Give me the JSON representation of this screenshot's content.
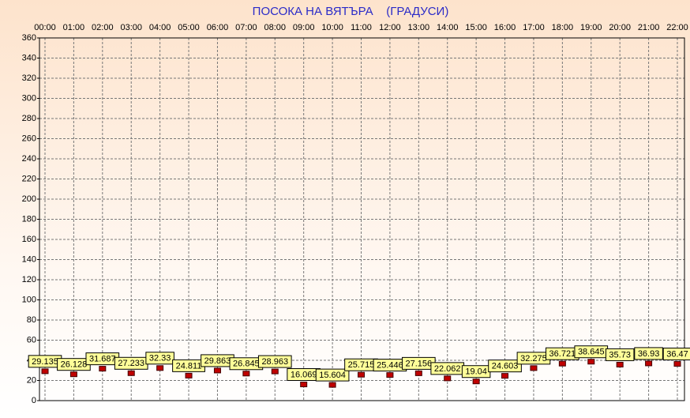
{
  "chart_data": {
    "type": "point",
    "title": "ПОСОКА НА ВЯТЪРА    (ГРАДУСИ)",
    "categories": [
      "00:00",
      "01:00",
      "02:00",
      "03:00",
      "04:00",
      "05:00",
      "06:00",
      "07:00",
      "08:00",
      "09:00",
      "10:00",
      "11:00",
      "12:00",
      "13:00",
      "14:00",
      "15:00",
      "16:00",
      "17:00",
      "18:00",
      "19:00",
      "20:00",
      "21:00",
      "22:00"
    ],
    "values": [
      29.135,
      26.128,
      31.687,
      27.233,
      32.33,
      24.811,
      29.863,
      26.845,
      28.963,
      16.069,
      15.604,
      25.715,
      25.446,
      27.156,
      22.062,
      19.04,
      24.603,
      32.275,
      36.721,
      38.645,
      35.73,
      36.93,
      36.47
    ],
    "color": "#c00000",
    "ylim": [
      0,
      360
    ],
    "yticks": [
      0,
      20,
      40,
      60,
      80,
      100,
      120,
      140,
      160,
      180,
      200,
      220,
      240,
      260,
      280,
      300,
      320,
      340,
      360
    ],
    "grid": true
  }
}
